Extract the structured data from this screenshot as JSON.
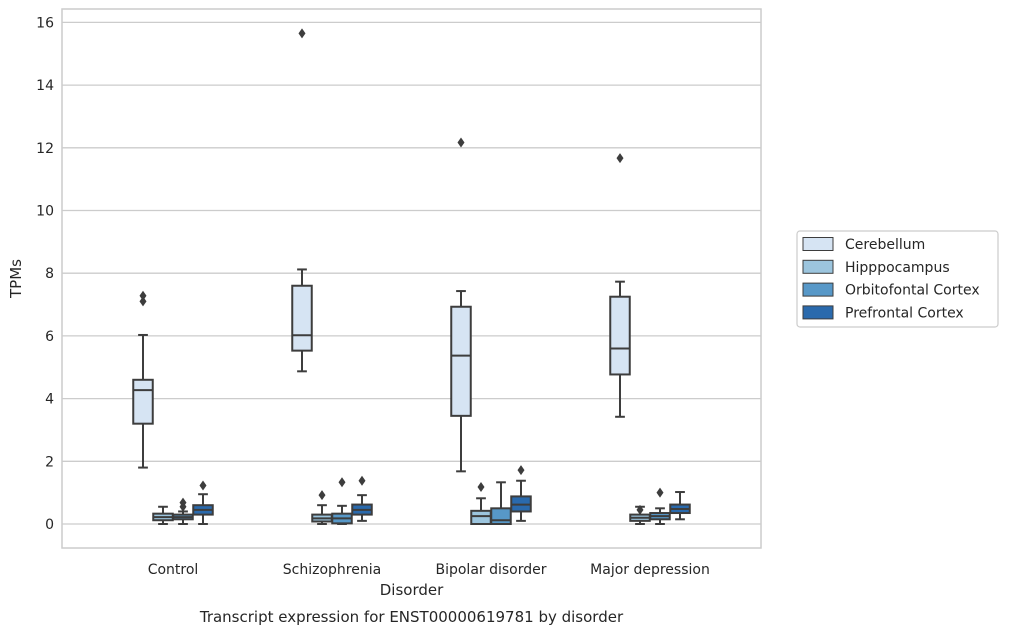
{
  "chart_data": {
    "type": "box",
    "title": "",
    "caption": "Transcript expression for ENST00000619781 by disorder",
    "xlabel": "Disorder",
    "ylabel": "TPMs",
    "ylim": [
      -0.75,
      16.45
    ],
    "yticks": [
      0,
      2,
      4,
      6,
      8,
      10,
      12,
      14,
      16
    ],
    "grid": "horizontal",
    "legend_position": "right",
    "categories": [
      "Control",
      "Schizophrenia",
      "Bipolar disorder",
      "Major depression"
    ],
    "series": [
      {
        "name": "Cerebellum",
        "color": "#d6e4f3",
        "boxes": [
          {
            "whisker_low": 1.8,
            "q1": 3.2,
            "median": 4.27,
            "q3": 4.6,
            "whisker_high": 6.03,
            "outliers": [
              7.1,
              7.28
            ]
          },
          {
            "whisker_low": 4.87,
            "q1": 5.53,
            "median": 6.02,
            "q3": 7.6,
            "whisker_high": 8.12,
            "outliers": [
              15.65
            ]
          },
          {
            "whisker_low": 1.68,
            "q1": 3.45,
            "median": 5.37,
            "q3": 6.93,
            "whisker_high": 7.43,
            "outliers": [
              12.17
            ]
          },
          {
            "whisker_low": 3.42,
            "q1": 4.77,
            "median": 5.6,
            "q3": 7.25,
            "whisker_high": 7.73,
            "outliers": [
              11.67
            ]
          }
        ]
      },
      {
        "name": "Hipppocampus",
        "color": "#9cc5de",
        "boxes": [
          {
            "whisker_low": 0.0,
            "q1": 0.12,
            "median": 0.22,
            "q3": 0.33,
            "whisker_high": 0.55,
            "outliers": []
          },
          {
            "whisker_low": 0.0,
            "q1": 0.08,
            "median": 0.18,
            "q3": 0.3,
            "whisker_high": 0.6,
            "outliers": [
              0.92
            ]
          },
          {
            "whisker_low": 0.0,
            "q1": 0.0,
            "median": 0.25,
            "q3": 0.42,
            "whisker_high": 0.82,
            "outliers": [
              1.18
            ]
          },
          {
            "whisker_low": 0.0,
            "q1": 0.1,
            "median": 0.2,
            "q3": 0.3,
            "whisker_high": 0.55,
            "outliers": [
              0.45
            ]
          }
        ]
      },
      {
        "name": "Orbitofontal Cortex",
        "color": "#5798c8",
        "boxes": [
          {
            "whisker_low": 0.0,
            "q1": 0.15,
            "median": 0.22,
            "q3": 0.3,
            "whisker_high": 0.4,
            "outliers": [
              0.55,
              0.68
            ]
          },
          {
            "whisker_low": 0.0,
            "q1": 0.02,
            "median": 0.18,
            "q3": 0.33,
            "whisker_high": 0.58,
            "outliers": [
              1.33
            ]
          },
          {
            "whisker_low": 0.0,
            "q1": 0.0,
            "median": 0.12,
            "q3": 0.5,
            "whisker_high": 1.33,
            "outliers": []
          },
          {
            "whisker_low": 0.0,
            "q1": 0.15,
            "median": 0.25,
            "q3": 0.35,
            "whisker_high": 0.5,
            "outliers": [
              1.0
            ]
          }
        ]
      },
      {
        "name": "Prefrontal Cortex",
        "color": "#2a6aad",
        "boxes": [
          {
            "whisker_low": 0.0,
            "q1": 0.3,
            "median": 0.45,
            "q3": 0.6,
            "whisker_high": 0.95,
            "outliers": [
              1.23
            ]
          },
          {
            "whisker_low": 0.1,
            "q1": 0.3,
            "median": 0.45,
            "q3": 0.62,
            "whisker_high": 0.92,
            "outliers": [
              1.38
            ]
          },
          {
            "whisker_low": 0.1,
            "q1": 0.4,
            "median": 0.62,
            "q3": 0.88,
            "whisker_high": 1.38,
            "outliers": [
              1.72
            ]
          },
          {
            "whisker_low": 0.15,
            "q1": 0.35,
            "median": 0.48,
            "q3": 0.62,
            "whisker_high": 1.02,
            "outliers": []
          }
        ]
      }
    ]
  }
}
